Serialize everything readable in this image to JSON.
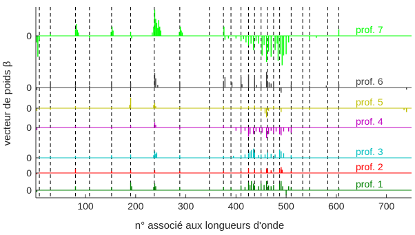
{
  "chart_data": {
    "type": "line",
    "xlabel": "n° associé aux longueurs d'onde",
    "ylabel": "vecteur de poids β",
    "xlim": [
      1,
      750
    ],
    "x_ticks": [
      100,
      200,
      300,
      400,
      500,
      600,
      700
    ],
    "y_tick_label": "0",
    "vertical_markers": [
      8,
      30,
      80,
      108,
      152,
      190,
      237,
      288,
      347,
      375,
      390,
      410,
      425,
      437,
      450,
      463,
      475,
      487,
      510,
      533,
      547,
      583,
      605
    ],
    "series": [
      {
        "name": "prof. 7",
        "color": "#00ff00",
        "baseline": 0,
        "spikes": [
          [
            3,
            -10
          ],
          [
            5,
            -32
          ],
          [
            8,
            -6
          ],
          [
            30,
            3
          ],
          [
            80,
            10
          ],
          [
            82,
            18
          ],
          [
            84,
            9
          ],
          [
            86,
            5
          ],
          [
            108,
            -3
          ],
          [
            151,
            6
          ],
          [
            153,
            14
          ],
          [
            155,
            8
          ],
          [
            190,
            6
          ],
          [
            192,
            -4
          ],
          [
            233,
            5
          ],
          [
            236,
            14
          ],
          [
            238,
            40
          ],
          [
            240,
            26
          ],
          [
            242,
            20
          ],
          [
            244,
            12
          ],
          [
            246,
            24
          ],
          [
            248,
            14
          ],
          [
            250,
            8
          ],
          [
            287,
            6
          ],
          [
            289,
            14
          ],
          [
            291,
            8
          ],
          [
            293,
            5
          ],
          [
            376,
            14
          ],
          [
            378,
            -6
          ],
          [
            385,
            -4
          ],
          [
            400,
            -4
          ],
          [
            410,
            -8
          ],
          [
            415,
            -5
          ],
          [
            420,
            -10
          ],
          [
            425,
            -15
          ],
          [
            430,
            -12
          ],
          [
            435,
            -22
          ],
          [
            440,
            -8
          ],
          [
            445,
            -12
          ],
          [
            452,
            -30
          ],
          [
            456,
            -14
          ],
          [
            461,
            -40
          ],
          [
            465,
            -24
          ],
          [
            470,
            -32
          ],
          [
            478,
            -22
          ],
          [
            482,
            -12
          ],
          [
            484,
            -38
          ],
          [
            488,
            -28
          ],
          [
            492,
            -45
          ],
          [
            495,
            -30
          ],
          [
            500,
            -28
          ],
          [
            505,
            -10
          ],
          [
            547,
            -6
          ],
          [
            560,
            -3
          ],
          [
            605,
            10
          ]
        ]
      },
      {
        "name": "prof. 6",
        "color": "#404040",
        "baseline": 0,
        "spikes": [
          [
            3,
            -4
          ],
          [
            30,
            6
          ],
          [
            80,
            4
          ],
          [
            108,
            3
          ],
          [
            152,
            8
          ],
          [
            190,
            7
          ],
          [
            238,
            22
          ],
          [
            240,
            14
          ],
          [
            244,
            4
          ],
          [
            288,
            8
          ],
          [
            375,
            10
          ],
          [
            378,
            16
          ],
          [
            392,
            8
          ],
          [
            410,
            16
          ],
          [
            412,
            5
          ],
          [
            425,
            20
          ],
          [
            437,
            14
          ],
          [
            441,
            4
          ],
          [
            450,
            5
          ],
          [
            461,
            24
          ],
          [
            463,
            10
          ],
          [
            466,
            8
          ],
          [
            470,
            6
          ],
          [
            475,
            8
          ],
          [
            487,
            -5
          ],
          [
            490,
            -8
          ],
          [
            510,
            4
          ],
          [
            547,
            3
          ],
          [
            580,
            3
          ],
          [
            605,
            5
          ],
          [
            740,
            -3
          ]
        ]
      },
      {
        "name": "prof. 5",
        "color": "#bfbf00",
        "baseline": 0,
        "spikes": [
          [
            3,
            -4
          ],
          [
            30,
            -2
          ],
          [
            80,
            3
          ],
          [
            108,
            2
          ],
          [
            152,
            2
          ],
          [
            188,
            5
          ],
          [
            190,
            16
          ],
          [
            236,
            5
          ],
          [
            238,
            8
          ],
          [
            240,
            3
          ],
          [
            288,
            2
          ],
          [
            375,
            3
          ],
          [
            410,
            3
          ],
          [
            425,
            3
          ],
          [
            437,
            4
          ],
          [
            450,
            -4
          ],
          [
            458,
            -8
          ],
          [
            461,
            -14
          ],
          [
            465,
            -4
          ],
          [
            475,
            3
          ],
          [
            490,
            -6
          ],
          [
            547,
            -3
          ],
          [
            735,
            -3
          ],
          [
            740,
            -6
          ]
        ]
      },
      {
        "name": "prof. 4",
        "color": "#bf00bf",
        "baseline": 0,
        "spikes": [
          [
            3,
            -4
          ],
          [
            80,
            2
          ],
          [
            152,
            -2
          ],
          [
            190,
            3
          ],
          [
            238,
            8
          ],
          [
            240,
            4
          ],
          [
            288,
            -3
          ],
          [
            375,
            3
          ],
          [
            400,
            -5
          ],
          [
            410,
            -8
          ],
          [
            418,
            -5
          ],
          [
            425,
            -14
          ],
          [
            428,
            -10
          ],
          [
            435,
            -10
          ],
          [
            440,
            -6
          ],
          [
            447,
            -7
          ],
          [
            452,
            -8
          ],
          [
            461,
            -16
          ],
          [
            465,
            -10
          ],
          [
            470,
            -5
          ],
          [
            475,
            -9
          ],
          [
            480,
            -6
          ],
          [
            487,
            -10
          ],
          [
            490,
            -12
          ],
          [
            495,
            -6
          ],
          [
            505,
            -6
          ],
          [
            510,
            -8
          ]
        ]
      },
      {
        "name": "prof. 3",
        "color": "#00bfbf",
        "baseline": 0,
        "spikes": [
          [
            30,
            2
          ],
          [
            80,
            3
          ],
          [
            108,
            2
          ],
          [
            152,
            4
          ],
          [
            190,
            5
          ],
          [
            236,
            4
          ],
          [
            238,
            10
          ],
          [
            240,
            6
          ],
          [
            242,
            8
          ],
          [
            288,
            4
          ],
          [
            375,
            3
          ],
          [
            395,
            3
          ],
          [
            410,
            4
          ],
          [
            418,
            5
          ],
          [
            425,
            7
          ],
          [
            428,
            10
          ],
          [
            431,
            12
          ],
          [
            435,
            14
          ],
          [
            437,
            8
          ],
          [
            445,
            4
          ],
          [
            450,
            5
          ],
          [
            458,
            5
          ],
          [
            463,
            8
          ],
          [
            470,
            6
          ],
          [
            478,
            5
          ],
          [
            487,
            12
          ],
          [
            490,
            10
          ],
          [
            495,
            7
          ],
          [
            510,
            4
          ]
        ]
      },
      {
        "name": "prof. 2",
        "color": "#ff0000",
        "baseline": 0,
        "spikes": [
          [
            3,
            -2
          ],
          [
            80,
            6
          ],
          [
            152,
            3
          ],
          [
            190,
            4
          ],
          [
            238,
            4
          ],
          [
            288,
            3
          ],
          [
            375,
            3
          ],
          [
            410,
            3
          ],
          [
            425,
            7
          ],
          [
            437,
            5
          ],
          [
            450,
            4
          ],
          [
            461,
            7
          ],
          [
            463,
            5
          ],
          [
            470,
            4
          ],
          [
            487,
            6
          ],
          [
            490,
            9
          ],
          [
            492,
            5
          ],
          [
            510,
            3
          ]
        ]
      },
      {
        "name": "prof. 1",
        "color": "#008000",
        "baseline": 0,
        "spikes": [
          [
            3,
            -3
          ],
          [
            80,
            6
          ],
          [
            108,
            2
          ],
          [
            152,
            4
          ],
          [
            190,
            12
          ],
          [
            192,
            6
          ],
          [
            236,
            5
          ],
          [
            238,
            10
          ],
          [
            240,
            6
          ],
          [
            288,
            4
          ],
          [
            375,
            5
          ],
          [
            390,
            4
          ],
          [
            410,
            7
          ],
          [
            418,
            5
          ],
          [
            425,
            12
          ],
          [
            428,
            8
          ],
          [
            431,
            14
          ],
          [
            435,
            10
          ],
          [
            437,
            7
          ],
          [
            445,
            6
          ],
          [
            450,
            10
          ],
          [
            456,
            8
          ],
          [
            461,
            14
          ],
          [
            465,
            7
          ],
          [
            470,
            6
          ],
          [
            475,
            8
          ],
          [
            487,
            10
          ],
          [
            490,
            14
          ],
          [
            493,
            6
          ],
          [
            500,
            -8
          ],
          [
            505,
            6
          ],
          [
            510,
            4
          ],
          [
            547,
            3
          ],
          [
            605,
            3
          ]
        ]
      }
    ]
  }
}
